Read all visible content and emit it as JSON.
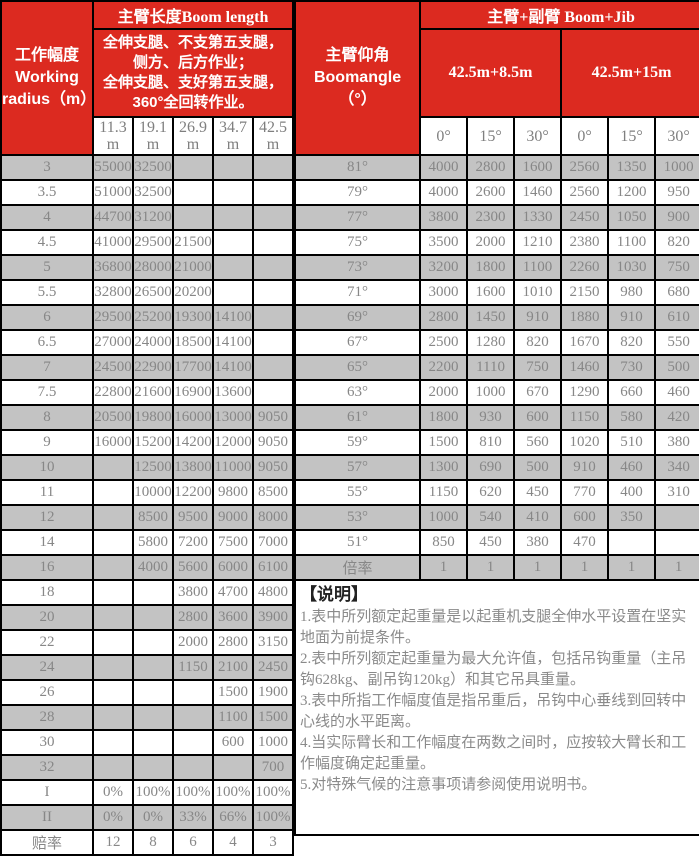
{
  "colors": {
    "header_red": "#dc2a20",
    "gray_row": "#c3c3c3",
    "cell_text_gray": "#878787",
    "border_black": "#000000",
    "header_text_white": "#ffffff"
  },
  "left_table": {
    "corner": "工作幅度\nWorking\nradius（m）",
    "title": "主臂长度Boom length",
    "condition": "全伸支腿、不支第五支腿，侧方、后方作业；\n全伸支腿、支好第五支腿，\n360°全回转作业。",
    "columns": [
      "11.3\nm",
      "19.1\nm",
      "26.9\nm",
      "34.7\nm",
      "42.5\nm"
    ],
    "rows": [
      {
        "label": "3",
        "values": [
          "55000",
          "32500",
          "",
          "",
          ""
        ]
      },
      {
        "label": "3.5",
        "values": [
          "51000",
          "32500",
          "",
          "",
          ""
        ]
      },
      {
        "label": "4",
        "values": [
          "44700",
          "31200",
          "",
          "",
          ""
        ]
      },
      {
        "label": "4.5",
        "values": [
          "41000",
          "29500",
          "21500",
          "",
          ""
        ]
      },
      {
        "label": "5",
        "values": [
          "36800",
          "28000",
          "21000",
          "",
          ""
        ]
      },
      {
        "label": "5.5",
        "values": [
          "32800",
          "26500",
          "20200",
          "",
          ""
        ]
      },
      {
        "label": "6",
        "values": [
          "29500",
          "25200",
          "19300",
          "14100",
          ""
        ]
      },
      {
        "label": "6.5",
        "values": [
          "27000",
          "24000",
          "18500",
          "14100",
          ""
        ]
      },
      {
        "label": "7",
        "values": [
          "24500",
          "22900",
          "17700",
          "14100",
          ""
        ]
      },
      {
        "label": "7.5",
        "values": [
          "22800",
          "21600",
          "16900",
          "13600",
          ""
        ]
      },
      {
        "label": "8",
        "values": [
          "20500",
          "19800",
          "16000",
          "13000",
          "9050"
        ]
      },
      {
        "label": "9",
        "values": [
          "16000",
          "15200",
          "14200",
          "12000",
          "9050"
        ]
      },
      {
        "label": "10",
        "values": [
          "",
          "12500",
          "13800",
          "11000",
          "9050"
        ]
      },
      {
        "label": "11",
        "values": [
          "",
          "10000",
          "12200",
          "9800",
          "8500"
        ]
      },
      {
        "label": "12",
        "values": [
          "",
          "8500",
          "9500",
          "9000",
          "8000"
        ]
      },
      {
        "label": "14",
        "values": [
          "",
          "5800",
          "7200",
          "7500",
          "7000"
        ]
      },
      {
        "label": "16",
        "values": [
          "",
          "4000",
          "5600",
          "6000",
          "6100"
        ]
      },
      {
        "label": "18",
        "values": [
          "",
          "",
          "3800",
          "4700",
          "4800"
        ]
      },
      {
        "label": "20",
        "values": [
          "",
          "",
          "2800",
          "3600",
          "3900"
        ]
      },
      {
        "label": "22",
        "values": [
          "",
          "",
          "2000",
          "2800",
          "3150"
        ]
      },
      {
        "label": "24",
        "values": [
          "",
          "",
          "1150",
          "2100",
          "2450"
        ]
      },
      {
        "label": "26",
        "values": [
          "",
          "",
          "",
          "1500",
          "1900"
        ]
      },
      {
        "label": "28",
        "values": [
          "",
          "",
          "",
          "1100",
          "1500"
        ]
      },
      {
        "label": "30",
        "values": [
          "",
          "",
          "",
          "600",
          "1000"
        ]
      },
      {
        "label": "32",
        "values": [
          "",
          "",
          "",
          "",
          "700"
        ]
      },
      {
        "label": "I",
        "values": [
          "0%",
          "100%",
          "100%",
          "100%",
          "100%"
        ]
      },
      {
        "label": "II",
        "values": [
          "0%",
          "0%",
          "33%",
          "66%",
          "100%"
        ]
      },
      {
        "label": "赔率",
        "values": [
          "12",
          "8",
          "6",
          "4",
          "3"
        ]
      }
    ]
  },
  "right_table": {
    "corner": "主臂仰角\nBoomangle\n（°）",
    "title": "主臂+副臂 Boom+Jib",
    "groups": [
      "42.5m+8.5m",
      "42.5m+15m"
    ],
    "columns": [
      "0°",
      "15°",
      "30°",
      "0°",
      "15°",
      "30°"
    ],
    "rows": [
      {
        "label": "81°",
        "values": [
          "4000",
          "2800",
          "1600",
          "2560",
          "1350",
          "1000"
        ]
      },
      {
        "label": "79°",
        "values": [
          "4000",
          "2600",
          "1460",
          "2560",
          "1200",
          "950"
        ]
      },
      {
        "label": "77°",
        "values": [
          "3800",
          "2300",
          "1330",
          "2450",
          "1050",
          "900"
        ]
      },
      {
        "label": "75°",
        "values": [
          "3500",
          "2000",
          "1210",
          "2380",
          "1100",
          "820"
        ]
      },
      {
        "label": "73°",
        "values": [
          "3200",
          "1800",
          "1100",
          "2260",
          "1030",
          "750"
        ]
      },
      {
        "label": "71°",
        "values": [
          "3000",
          "1600",
          "1010",
          "2150",
          "980",
          "680"
        ]
      },
      {
        "label": "69°",
        "values": [
          "2800",
          "1450",
          "910",
          "1880",
          "910",
          "610"
        ]
      },
      {
        "label": "67°",
        "values": [
          "2500",
          "1280",
          "820",
          "1670",
          "820",
          "550"
        ]
      },
      {
        "label": "65°",
        "values": [
          "2200",
          "1110",
          "750",
          "1460",
          "730",
          "500"
        ]
      },
      {
        "label": "63°",
        "values": [
          "2000",
          "1000",
          "670",
          "1290",
          "660",
          "460"
        ]
      },
      {
        "label": "61°",
        "values": [
          "1800",
          "930",
          "600",
          "1150",
          "580",
          "420"
        ]
      },
      {
        "label": "59°",
        "values": [
          "1500",
          "810",
          "560",
          "1020",
          "510",
          "380"
        ]
      },
      {
        "label": "57°",
        "values": [
          "1300",
          "690",
          "500",
          "910",
          "460",
          "340"
        ]
      },
      {
        "label": "55°",
        "values": [
          "1150",
          "620",
          "450",
          "770",
          "400",
          "310"
        ]
      },
      {
        "label": "53°",
        "values": [
          "1000",
          "540",
          "410",
          "600",
          "350",
          ""
        ]
      },
      {
        "label": "51°",
        "values": [
          "850",
          "450",
          "380",
          "470",
          "",
          ""
        ]
      },
      {
        "label": "倍率",
        "values": [
          "1",
          "1",
          "1",
          "1",
          "1",
          "1"
        ]
      }
    ],
    "notes": {
      "title": "【说明】",
      "items": [
        "1.表中所列额定起重量是以起重机支腿全伸水平设置在坚实地面为前提条件。",
        "2.表中所列额定起重量为最大允许值，包括吊钩重量（主吊钩628kg、副吊钩120kg）和其它吊具重量。",
        "3.表中所指工作幅度值是指吊重后，吊钩中心垂线到回转中心线的水平距离。",
        "4.当实际臂长和工作幅度在两数之间时，应按较大臂长和工作幅度确定起重量。",
        "5.对特殊气候的注意事项请参阅使用说明书。"
      ]
    }
  }
}
